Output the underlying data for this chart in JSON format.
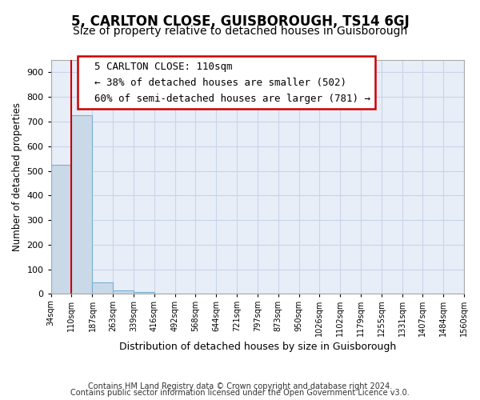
{
  "title1": "5, CARLTON CLOSE, GUISBOROUGH, TS14 6GJ",
  "title2": "Size of property relative to detached houses in Guisborough",
  "xlabel": "Distribution of detached houses by size in Guisborough",
  "ylabel": "Number of detached properties",
  "footer1": "Contains HM Land Registry data © Crown copyright and database right 2024.",
  "footer2": "Contains public sector information licensed under the Open Government Licence v3.0.",
  "annotation_line1": "5 CARLTON CLOSE: 110sqm",
  "annotation_line2": "← 38% of detached houses are smaller (502)",
  "annotation_line3": "60% of semi-detached houses are larger (781) →",
  "bar_left_edges": [
    34,
    110,
    187,
    263,
    339,
    416,
    492,
    568,
    644,
    721,
    797,
    873,
    950,
    1026,
    1102,
    1179,
    1255,
    1331,
    1407,
    1484
  ],
  "bar_widths": [
    76,
    77,
    76,
    76,
    77,
    76,
    76,
    76,
    77,
    76,
    76,
    77,
    76,
    76,
    77,
    76,
    76,
    76,
    77,
    76
  ],
  "bar_heights": [
    525,
    727,
    47,
    15,
    8,
    0,
    0,
    0,
    0,
    0,
    0,
    0,
    0,
    0,
    0,
    0,
    0,
    0,
    0,
    0
  ],
  "bar_color": "#c9d9e8",
  "bar_edge_color": "#7bafd4",
  "red_line_x": 110,
  "ylim": [
    0,
    950
  ],
  "yticks": [
    0,
    100,
    200,
    300,
    400,
    500,
    600,
    700,
    800,
    900
  ],
  "xtick_labels": [
    "34sqm",
    "110sqm",
    "187sqm",
    "263sqm",
    "339sqm",
    "416sqm",
    "492sqm",
    "568sqm",
    "644sqm",
    "721sqm",
    "797sqm",
    "873sqm",
    "950sqm",
    "1026sqm",
    "1102sqm",
    "1179sqm",
    "1255sqm",
    "1331sqm",
    "1407sqm",
    "1484sqm",
    "1560sqm"
  ],
  "grid_color": "#c8d4e8",
  "bg_color": "#e8eef8",
  "annotation_box_edge": "#cc0000",
  "title1_fontsize": 12,
  "title2_fontsize": 10,
  "ann_fontsize": 9
}
